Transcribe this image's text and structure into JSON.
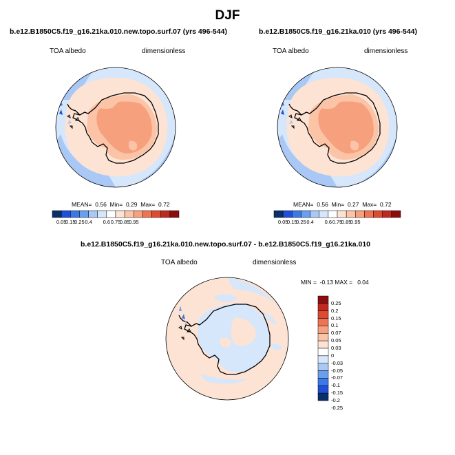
{
  "figure_title": "DJF",
  "colors": {
    "abs": [
      "#08306b",
      "#1f4fd8",
      "#3c78e6",
      "#6a9ff0",
      "#a9c8f5",
      "#d6e6fb",
      "#ffffff",
      "#fde3d4",
      "#fbc4a7",
      "#f7a07e",
      "#ef7454",
      "#de4b32",
      "#be2a20",
      "#8c0d0d"
    ],
    "diff": [
      "#08306b",
      "#1f4fd8",
      "#3c78e6",
      "#6a9ff0",
      "#a9c8f5",
      "#d6e6fb",
      "#ffffff",
      "#fde3d4",
      "#fbc4a7",
      "#f7a07e",
      "#ef7454",
      "#de4b32",
      "#be2a20",
      "#8c0d0d"
    ],
    "coast": "#000000"
  },
  "panels": [
    {
      "title": "b.e12.B1850C5.f19_g16.21ka.010.new.topo.surf.07 (yrs 496-544)",
      "left_label": "TOA albedo",
      "right_label": "dimensionless",
      "mean_label": "MEAN=",
      "mean": "0.56",
      "min_label": "Min=",
      "min": "0.29",
      "max_label": "Max=",
      "max": "0.72"
    },
    {
      "title": "b.e12.B1850C5.f19_g16.21ka.010 (yrs 496-544)",
      "left_label": "TOA albedo",
      "right_label": "dimensionless",
      "mean_label": "MEAN=",
      "mean": "0.56",
      "min_label": "Min=",
      "min": "0.27",
      "max_label": "Max=",
      "max": "0.72"
    }
  ],
  "abs_colorbar_labels": [
    "0.05",
    "0.15",
    "0.25",
    "0.4",
    "0.6",
    "0.75",
    "0.85",
    "0.95"
  ],
  "diff_panel": {
    "title": "b.e12.B1850C5.f19_g16.21ka.010.new.topo.surf.07 - b.e12.B1850C5.f19_g16.21ka.010",
    "left_label": "TOA albedo",
    "right_label": "dimensionless",
    "minmax": "MIN =  -0.13 MAX =   0.04",
    "colorbar_labels": [
      "0.25",
      "0.2",
      "0.15",
      "0.1",
      "0.07",
      "0.05",
      "0.03",
      "0",
      "-0.03",
      "-0.05",
      "-0.07",
      "-0.1",
      "-0.15",
      "-0.2",
      "-0.25"
    ]
  }
}
